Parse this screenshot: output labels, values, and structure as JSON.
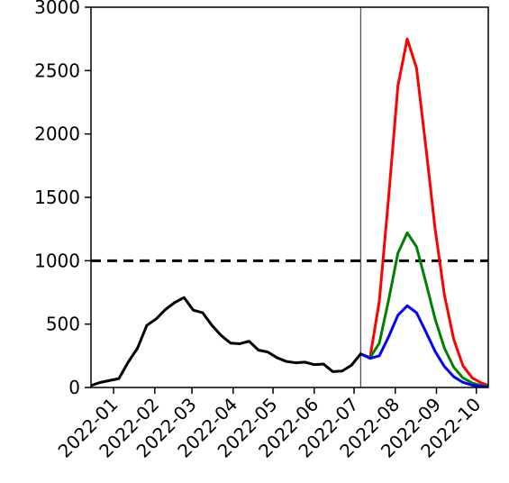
{
  "chart_data": {
    "type": "line",
    "title": "",
    "xlabel": "",
    "ylabel": "",
    "ylim": [
      0,
      3000
    ],
    "xlim": [
      "2021-12-15",
      "2022-10-10"
    ],
    "grid": false,
    "legend": "none",
    "yticks": [
      0,
      500,
      1000,
      1500,
      2000,
      2500,
      3000
    ],
    "xticks": [
      "2022-01",
      "2022-02",
      "2022-03",
      "2022-04",
      "2022-05",
      "2022-06",
      "2022-07",
      "2022-08",
      "2022-09",
      "2022-10"
    ],
    "threshold": {
      "value": 1000,
      "style": "dashed",
      "color": "#000000"
    },
    "vline": {
      "x": "2022-07-06",
      "color": "#555555"
    },
    "series": [
      {
        "color": "#000000",
        "points": [
          [
            "2021-12-15",
            15
          ],
          [
            "2021-12-22",
            40
          ],
          [
            "2021-12-29",
            55
          ],
          [
            "2022-01-05",
            70
          ],
          [
            "2022-01-12",
            200
          ],
          [
            "2022-01-19",
            310
          ],
          [
            "2022-01-26",
            490
          ],
          [
            "2022-02-02",
            540
          ],
          [
            "2022-02-09",
            615
          ],
          [
            "2022-02-16",
            670
          ],
          [
            "2022-02-23",
            710
          ],
          [
            "2022-03-02",
            610
          ],
          [
            "2022-03-09",
            590
          ],
          [
            "2022-03-16",
            490
          ],
          [
            "2022-03-23",
            410
          ],
          [
            "2022-03-30",
            350
          ],
          [
            "2022-04-06",
            345
          ],
          [
            "2022-04-13",
            365
          ],
          [
            "2022-04-20",
            295
          ],
          [
            "2022-04-27",
            280
          ],
          [
            "2022-05-04",
            235
          ],
          [
            "2022-05-11",
            205
          ],
          [
            "2022-05-18",
            195
          ],
          [
            "2022-05-25",
            200
          ],
          [
            "2022-06-01",
            180
          ],
          [
            "2022-06-08",
            185
          ],
          [
            "2022-06-15",
            125
          ],
          [
            "2022-06-22",
            130
          ],
          [
            "2022-06-29",
            175
          ],
          [
            "2022-07-06",
            265
          ]
        ]
      },
      {
        "color": "#ff0000",
        "points": [
          [
            "2022-07-06",
            265
          ],
          [
            "2022-07-13",
            235
          ],
          [
            "2022-07-20",
            680
          ],
          [
            "2022-07-27",
            1500
          ],
          [
            "2022-08-03",
            2380
          ],
          [
            "2022-08-10",
            2750
          ],
          [
            "2022-08-17",
            2520
          ],
          [
            "2022-08-24",
            1900
          ],
          [
            "2022-08-31",
            1250
          ],
          [
            "2022-09-07",
            730
          ],
          [
            "2022-09-14",
            380
          ],
          [
            "2022-09-21",
            170
          ],
          [
            "2022-09-28",
            75
          ],
          [
            "2022-10-05",
            35
          ],
          [
            "2022-10-10",
            15
          ]
        ]
      },
      {
        "color": "#008000",
        "points": [
          [
            "2022-07-06",
            265
          ],
          [
            "2022-07-13",
            235
          ],
          [
            "2022-07-20",
            350
          ],
          [
            "2022-07-27",
            690
          ],
          [
            "2022-08-03",
            1060
          ],
          [
            "2022-08-10",
            1220
          ],
          [
            "2022-08-17",
            1110
          ],
          [
            "2022-08-24",
            830
          ],
          [
            "2022-08-31",
            540
          ],
          [
            "2022-09-07",
            310
          ],
          [
            "2022-09-14",
            160
          ],
          [
            "2022-09-21",
            75
          ],
          [
            "2022-09-28",
            35
          ],
          [
            "2022-10-05",
            15
          ],
          [
            "2022-10-10",
            8
          ]
        ]
      },
      {
        "color": "#0000ff",
        "points": [
          [
            "2022-07-06",
            265
          ],
          [
            "2022-07-13",
            230
          ],
          [
            "2022-07-20",
            250
          ],
          [
            "2022-07-27",
            400
          ],
          [
            "2022-08-03",
            570
          ],
          [
            "2022-08-10",
            645
          ],
          [
            "2022-08-17",
            590
          ],
          [
            "2022-08-24",
            440
          ],
          [
            "2022-08-31",
            285
          ],
          [
            "2022-09-07",
            165
          ],
          [
            "2022-09-14",
            85
          ],
          [
            "2022-09-21",
            40
          ],
          [
            "2022-09-28",
            18
          ],
          [
            "2022-10-05",
            8
          ],
          [
            "2022-10-10",
            3
          ]
        ]
      }
    ]
  }
}
